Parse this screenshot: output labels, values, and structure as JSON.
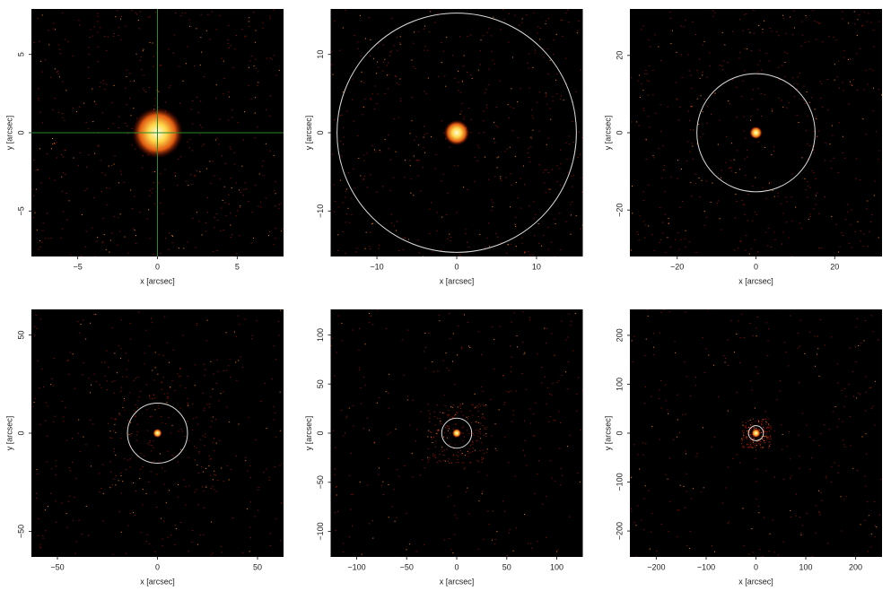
{
  "chart_data": [
    {
      "type": "image",
      "xlabel": "x [arcsec]",
      "ylabel": "y [arcsec]",
      "xlim": [
        -7.9,
        7.9
      ],
      "ylim": [
        -7.9,
        7.9
      ],
      "xticks": [
        {
          "value": -5,
          "label": "−5"
        },
        0,
        5
      ],
      "yticks": [
        {
          "value": -5,
          "label": "−5"
        },
        0,
        5
      ],
      "crosshair": [
        0,
        0
      ]
    },
    {
      "type": "image",
      "xlabel": "x [arcsec]",
      "ylabel": "y [arcsec]",
      "xlim": [
        -15.8,
        15.8
      ],
      "ylim": [
        -15.8,
        15.8
      ],
      "xticks": [
        {
          "value": -10,
          "label": "−10"
        },
        0,
        10
      ],
      "yticks": [
        {
          "value": -10,
          "label": "−10"
        },
        0,
        10
      ],
      "circle_radius": 15
    },
    {
      "type": "image",
      "xlabel": "x [arcsec]",
      "ylabel": "y [arcsec]",
      "xlim": [
        -32,
        32
      ],
      "ylim": [
        -32,
        32
      ],
      "xticks": [
        {
          "value": -20,
          "label": "−20"
        },
        0,
        20
      ],
      "yticks": [
        {
          "value": -20,
          "label": "−20"
        },
        0,
        20
      ],
      "circle_radius": 15
    },
    {
      "type": "image",
      "xlabel": "x [arcsec]",
      "ylabel": "y [arcsec]",
      "xlim": [
        -63,
        63
      ],
      "ylim": [
        -63,
        63
      ],
      "xticks": [
        {
          "value": -50,
          "label": "−50"
        },
        0,
        50
      ],
      "yticks": [
        {
          "value": -50,
          "label": "−50"
        },
        0,
        50
      ],
      "circle_radius": 15
    },
    {
      "type": "image",
      "xlabel": "x [arcsec]",
      "ylabel": "y [arcsec]",
      "xlim": [
        -126,
        126
      ],
      "ylim": [
        -126,
        126
      ],
      "xticks": [
        {
          "value": -100,
          "label": "−100"
        },
        {
          "value": -50,
          "label": "−50"
        },
        0,
        50,
        100
      ],
      "yticks": [
        {
          "value": -100,
          "label": "−100"
        },
        {
          "value": -50,
          "label": "−50"
        },
        0,
        50,
        100
      ],
      "circle_radius": 15
    },
    {
      "type": "image",
      "xlabel": "x [arcsec]",
      "ylabel": "y [arcsec]",
      "xlim": [
        -253,
        253
      ],
      "ylim": [
        -253,
        253
      ],
      "xticks": [
        {
          "value": -200,
          "label": "−200"
        },
        {
          "value": -100,
          "label": "−100"
        },
        0,
        100,
        200
      ],
      "yticks": [
        {
          "value": -200,
          "label": "−200"
        },
        {
          "value": -100,
          "label": "−100"
        },
        0,
        100,
        200
      ],
      "circle_radius": 15
    }
  ]
}
